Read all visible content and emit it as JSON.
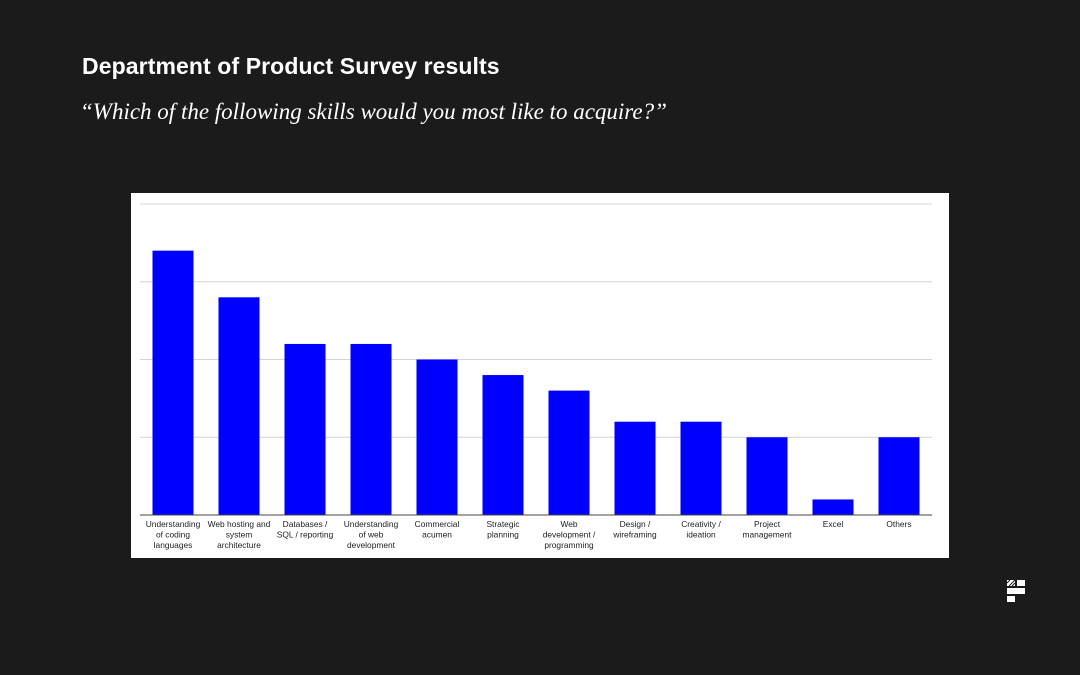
{
  "header": {
    "title": "Department of Product Survey results",
    "subtitle": "“Which of the following skills would you most like to acquire?”"
  },
  "logo": {
    "icon": "brand-logo-icon",
    "color": "#ffffff"
  },
  "chart_data": {
    "type": "bar",
    "bar_color": "#0000ff",
    "gridlines": true,
    "ylim": [
      0,
      20
    ],
    "categories": [
      [
        "Understanding",
        "of coding",
        "languages"
      ],
      [
        "Web hosting and",
        "system",
        "architecture"
      ],
      [
        "Databases /",
        "SQL / reporting"
      ],
      [
        "Understanding",
        "of web",
        "development"
      ],
      [
        "Commercial",
        "acumen"
      ],
      [
        "Strategic",
        "planning"
      ],
      [
        "Web",
        "development /",
        "programming"
      ],
      [
        "Design /",
        "wireframing"
      ],
      [
        "Creativity /",
        "ideation"
      ],
      [
        "Project",
        "management"
      ],
      [
        "Excel"
      ],
      [
        "Others"
      ]
    ],
    "values": [
      17,
      14,
      11,
      11,
      10,
      9,
      8,
      6,
      6,
      5,
      1,
      5
    ]
  }
}
